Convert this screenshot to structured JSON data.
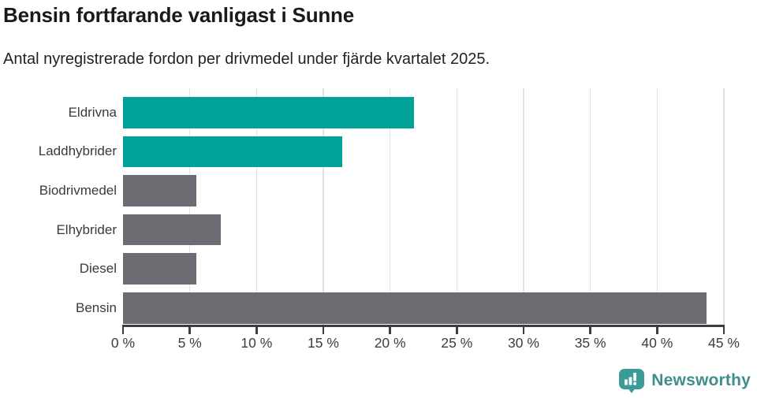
{
  "header": {
    "title": "Bensin fortfarande vanligast i Sunne",
    "subtitle": "Antal nyregistrerade fordon per drivmedel under fjärde kvartalet 2025."
  },
  "chart_data": {
    "type": "bar",
    "orientation": "horizontal",
    "title": "Bensin fortfarande vanligast i Sunne",
    "subtitle": "Antal nyregistrerade fordon per drivmedel under fjärde kvartalet 2025.",
    "categories": [
      "Eldrivna",
      "Laddhybrider",
      "Biodrivmedel",
      "Elhybrider",
      "Diesel",
      "Bensin"
    ],
    "values": [
      21.8,
      16.4,
      5.5,
      7.3,
      5.5,
      43.7
    ],
    "bar_colors": [
      "#00a29a",
      "#00a29a",
      "#6e6b73",
      "#6e6b73",
      "#6e6b73",
      "#6e6b73"
    ],
    "xlabel": "",
    "ylabel": "",
    "xlim": [
      0,
      45
    ],
    "x_ticks": [
      0,
      5,
      10,
      15,
      20,
      25,
      30,
      35,
      40,
      45
    ],
    "x_tick_labels": [
      "0 %",
      "5 %",
      "10 %",
      "15 %",
      "20 %",
      "25 %",
      "30 %",
      "35 %",
      "40 %",
      "45 %"
    ],
    "grid": "vertical-only",
    "legend": "none"
  },
  "colors": {
    "accent_teal": "#00a29a",
    "neutral_gray": "#6e6b73",
    "axis": "#3d3d3d",
    "gridline": "#e3e3e3",
    "title_text": "#1a1a1a",
    "brand_teal": "#3e8e8c"
  },
  "footer": {
    "brand": "Newsworthy",
    "logo_icon": "bar-chart-speech-bubble-icon"
  }
}
